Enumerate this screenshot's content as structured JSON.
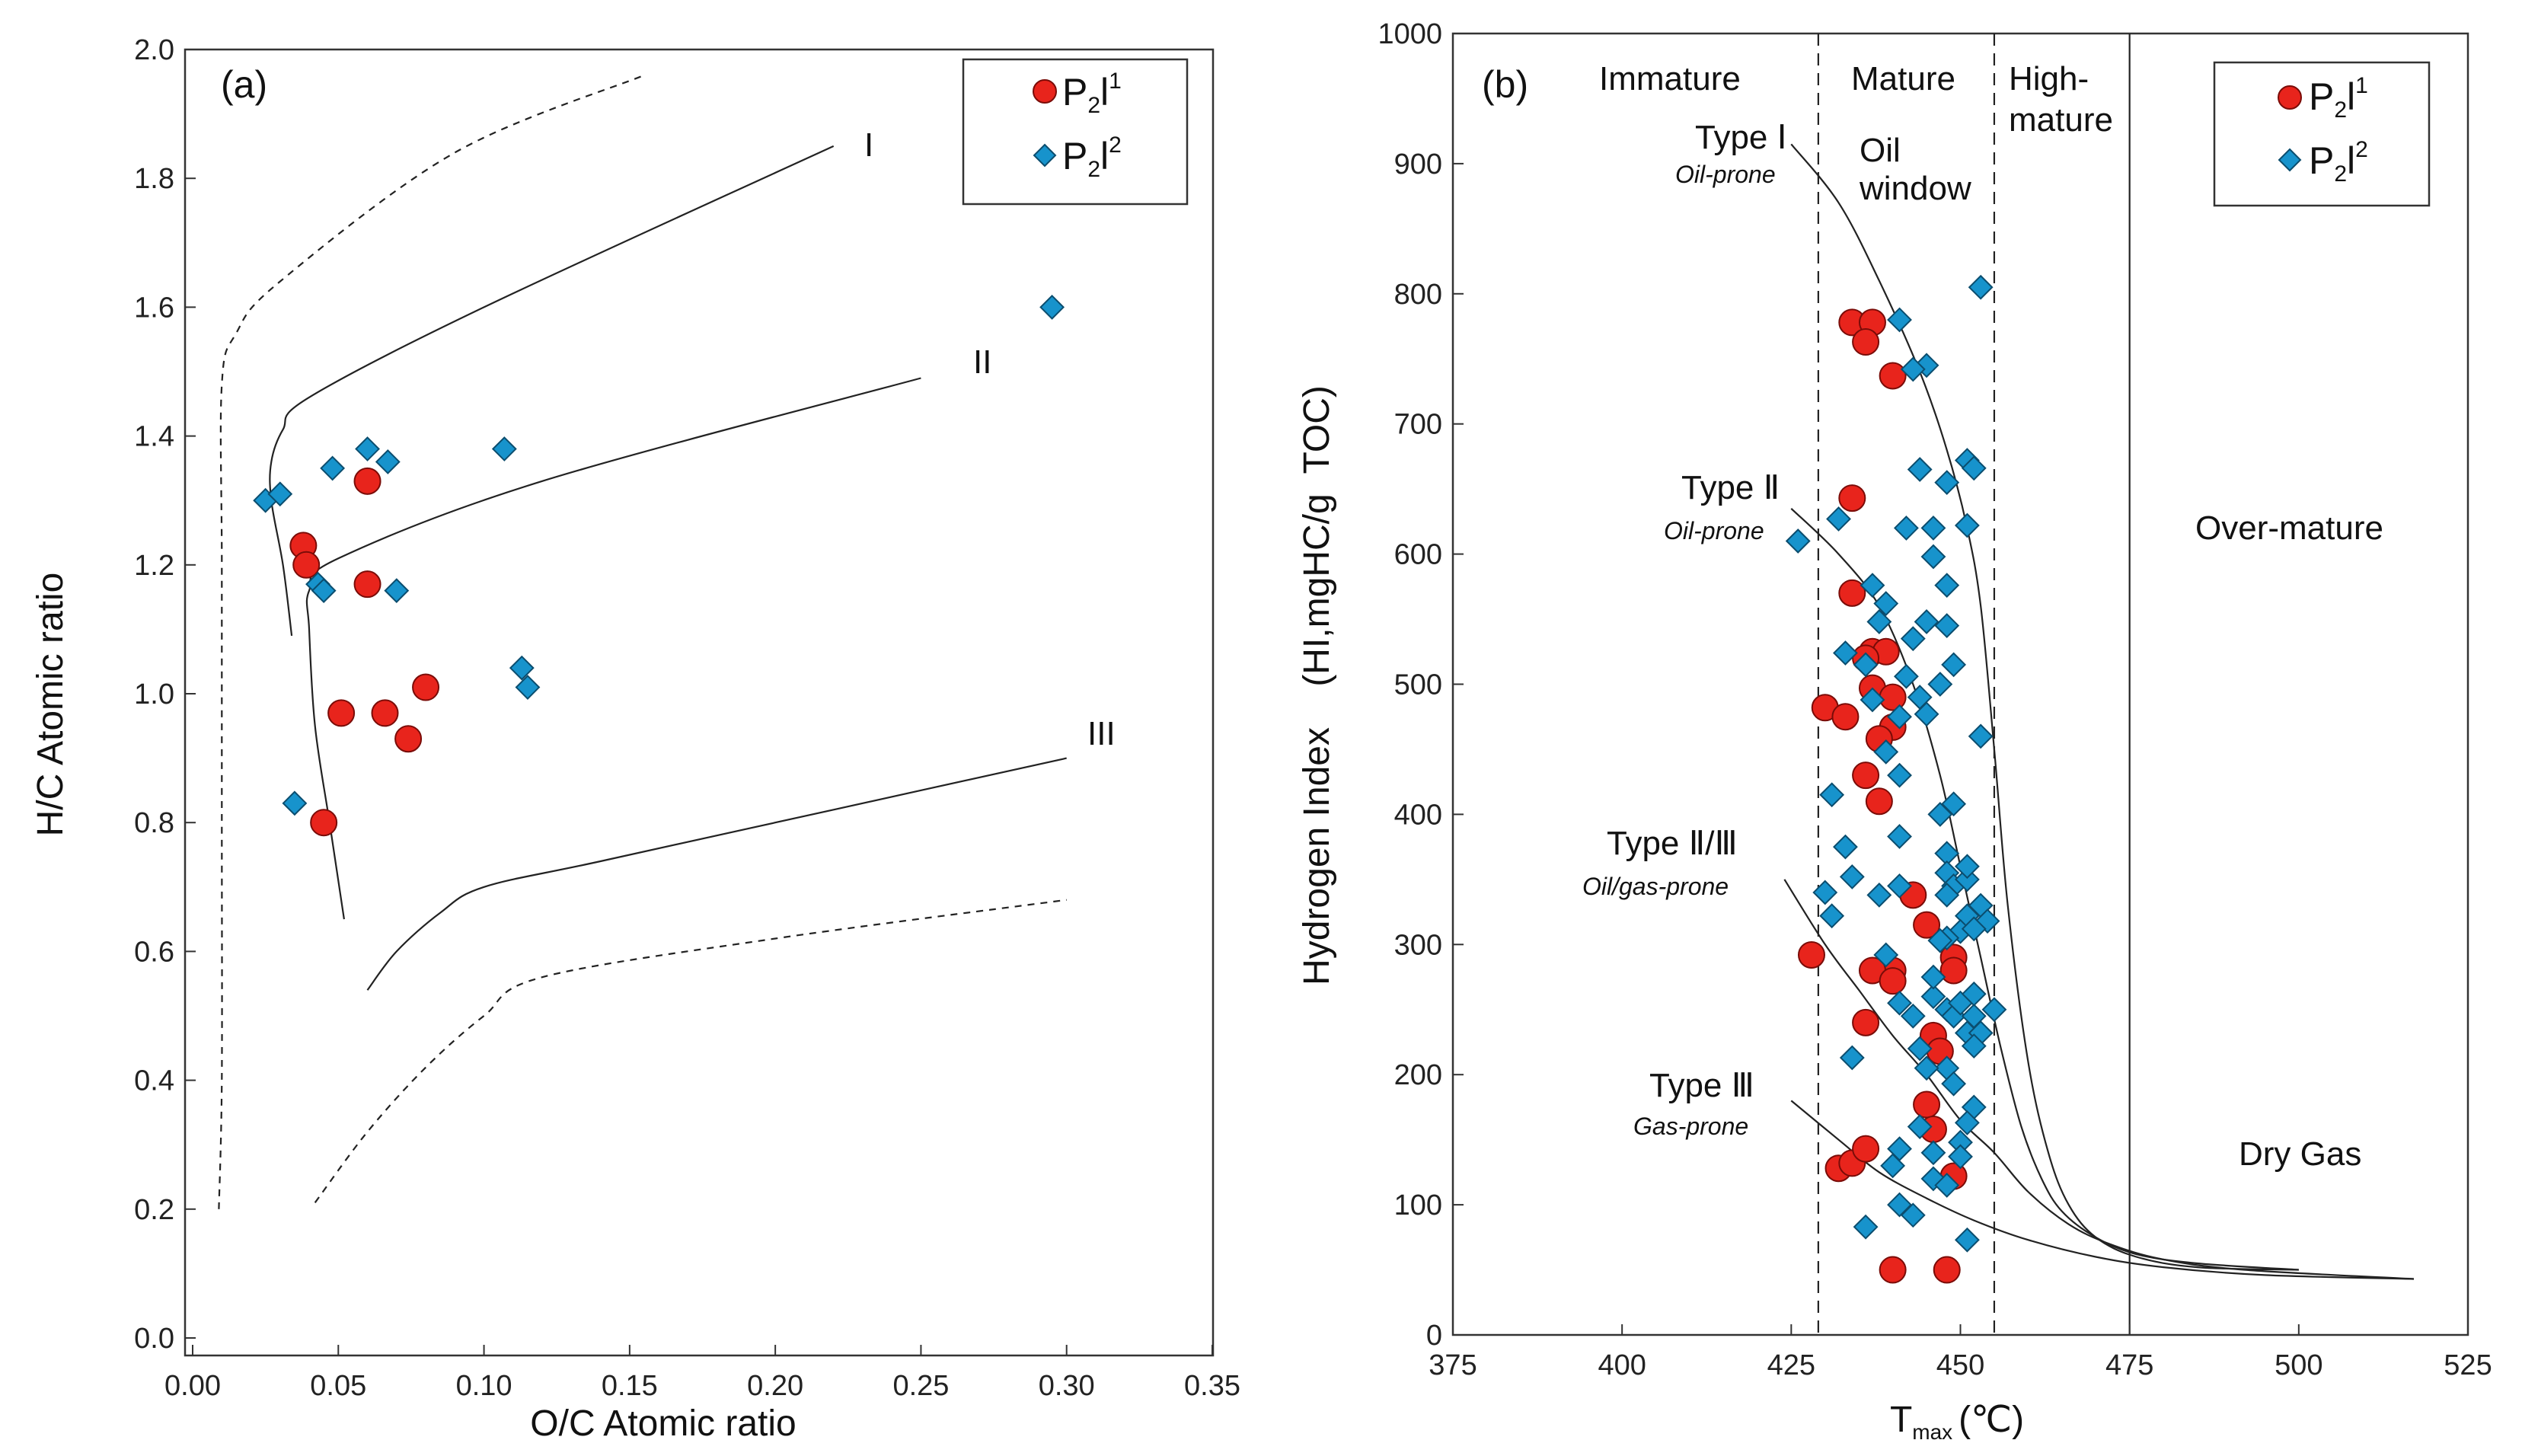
{
  "colors": {
    "p2l1": "#e8241c",
    "p2l2": "#1793cc",
    "line": "#222222",
    "frame": "#333333"
  },
  "legend": {
    "p2l1": {
      "base": "P",
      "sub": "2",
      "mid": "l",
      "sup": "1"
    },
    "p2l2": {
      "base": "P",
      "sub": "2",
      "mid": "l",
      "sup": "2"
    }
  },
  "chart_data": [
    {
      "type": "scatter",
      "panel_label": "(a)",
      "xlabel": "O/C Atomic ratio",
      "ylabel": "H/C Atomic ratio",
      "xlim": [
        0,
        0.35
      ],
      "ylim": [
        0,
        2.0
      ],
      "xticks": [
        "0.00",
        "0.05",
        "0.10",
        "0.15",
        "0.20",
        "0.25",
        "0.30",
        "0.35"
      ],
      "yticks": [
        "0.0",
        "0.2",
        "0.4",
        "0.6",
        "0.8",
        "1.0",
        "1.2",
        "1.4",
        "1.6",
        "1.8",
        "2.0"
      ],
      "curve_labels": [
        "I",
        "II",
        "III"
      ],
      "curves": [
        {
          "name": "I",
          "style": "solid",
          "points": [
            [
              0.034,
              1.09
            ],
            [
              0.031,
              1.2
            ],
            [
              0.027,
              1.3
            ],
            [
              0.027,
              1.36
            ],
            [
              0.031,
              1.41
            ],
            [
              0.04,
              1.46
            ],
            [
              0.1,
              1.6
            ],
            [
              0.22,
              1.85
            ]
          ]
        },
        {
          "name": "II",
          "style": "solid",
          "points": [
            [
              0.052,
              0.65
            ],
            [
              0.047,
              0.8
            ],
            [
              0.042,
              0.95
            ],
            [
              0.04,
              1.1
            ],
            [
              0.04,
              1.16
            ],
            [
              0.05,
              1.21
            ],
            [
              0.12,
              1.33
            ],
            [
              0.25,
              1.49
            ]
          ]
        },
        {
          "name": "III",
          "style": "solid",
          "points": [
            [
              0.06,
              0.54
            ],
            [
              0.07,
              0.6
            ],
            [
              0.085,
              0.66
            ],
            [
              0.1,
              0.7
            ],
            [
              0.14,
              0.74
            ],
            [
              0.22,
              0.82
            ],
            [
              0.3,
              0.9
            ]
          ]
        },
        {
          "name": "upper-limit",
          "style": "dashed",
          "points": [
            [
              0.009,
              0.2
            ],
            [
              0.01,
              0.4
            ],
            [
              0.01,
              0.8
            ],
            [
              0.01,
              1.2
            ],
            [
              0.01,
              1.48
            ],
            [
              0.015,
              1.56
            ],
            [
              0.03,
              1.64
            ],
            [
              0.09,
              1.84
            ],
            [
              0.155,
              1.96
            ]
          ]
        },
        {
          "name": "lower-limit",
          "style": "dashed",
          "points": [
            [
              0.042,
              0.21
            ],
            [
              0.06,
              0.32
            ],
            [
              0.08,
              0.42
            ],
            [
              0.1,
              0.5
            ],
            [
              0.12,
              0.56
            ],
            [
              0.2,
              0.62
            ],
            [
              0.3,
              0.68
            ]
          ]
        }
      ],
      "series": [
        {
          "name": "P2l1",
          "marker": "circle",
          "points": [
            [
              0.06,
              1.33
            ],
            [
              0.038,
              1.23
            ],
            [
              0.039,
              1.2
            ],
            [
              0.06,
              1.17
            ],
            [
              0.051,
              0.97
            ],
            [
              0.066,
              0.97
            ],
            [
              0.08,
              1.01
            ],
            [
              0.074,
              0.93
            ],
            [
              0.045,
              0.8
            ]
          ]
        },
        {
          "name": "P2l2",
          "marker": "diamond",
          "points": [
            [
              0.295,
              1.6
            ],
            [
              0.025,
              1.3
            ],
            [
              0.03,
              1.31
            ],
            [
              0.048,
              1.35
            ],
            [
              0.06,
              1.38
            ],
            [
              0.067,
              1.36
            ],
            [
              0.107,
              1.38
            ],
            [
              0.043,
              1.17
            ],
            [
              0.045,
              1.16
            ],
            [
              0.07,
              1.16
            ],
            [
              0.113,
              1.04
            ],
            [
              0.115,
              1.01
            ],
            [
              0.035,
              0.83
            ]
          ]
        }
      ]
    },
    {
      "type": "scatter",
      "panel_label": "(b)",
      "xlabel": "T",
      "xlabel_sub": "max",
      "xlabel_unit": "(℃)",
      "ylabel": "Hydrogen Index    (HI,mgHC/g  TOC)",
      "xlim": [
        375,
        525
      ],
      "ylim": [
        0,
        1000
      ],
      "xticks": [
        "375",
        "400",
        "425",
        "450",
        "475",
        "500",
        "525"
      ],
      "yticks": [
        "0",
        "100",
        "200",
        "300",
        "400",
        "500",
        "600",
        "700",
        "800",
        "900",
        "1000"
      ],
      "zones": {
        "immature": "Immature",
        "mature": "Mature",
        "high_mature_1": "High-",
        "high_mature_2": "mature",
        "oil_window_1": "Oil",
        "oil_window_2": "window",
        "over_mature": "Over-mature",
        "dry_gas": "Dry Gas"
      },
      "boundaries": [
        429,
        455,
        475
      ],
      "type_labels": [
        {
          "type": "Type Ⅰ",
          "kind": "Oil-prone"
        },
        {
          "type": "Type Ⅱ",
          "kind": "Oil-prone"
        },
        {
          "type": "Type Ⅱ/Ⅲ",
          "kind": "Oil/gas-prone"
        },
        {
          "type": "Type Ⅲ",
          "kind": "Gas-prone"
        }
      ],
      "curves": [
        {
          "name": "Type I",
          "points": [
            [
              425,
              915
            ],
            [
              432,
              870
            ],
            [
              438,
              810
            ],
            [
              444,
              740
            ],
            [
              448,
              680
            ],
            [
              451,
              620
            ],
            [
              453,
              560
            ],
            [
              455,
              450
            ],
            [
              457,
              330
            ],
            [
              460,
              210
            ],
            [
              463,
              140
            ],
            [
              466,
              100
            ],
            [
              470,
              75
            ],
            [
              476,
              60
            ],
            [
              485,
              52
            ],
            [
              500,
              50
            ]
          ]
        },
        {
          "name": "Type II",
          "points": [
            [
              425,
              635
            ],
            [
              432,
              600
            ],
            [
              438,
              560
            ],
            [
              443,
              500
            ],
            [
              447,
              430
            ],
            [
              450,
              360
            ],
            [
              453,
              290
            ],
            [
              456,
              220
            ],
            [
              459,
              160
            ],
            [
              462,
              120
            ],
            [
              465,
              95
            ],
            [
              470,
              75
            ],
            [
              476,
              62
            ],
            [
              485,
              55
            ],
            [
              500,
              50
            ]
          ]
        },
        {
          "name": "Type II/III",
          "points": [
            [
              424,
              350
            ],
            [
              430,
              300
            ],
            [
              435,
              265
            ],
            [
              440,
              230
            ],
            [
              445,
              200
            ],
            [
              450,
              165
            ],
            [
              455,
              140
            ],
            [
              460,
              110
            ],
            [
              466,
              85
            ],
            [
              472,
              70
            ],
            [
              480,
              58
            ],
            [
              492,
              50
            ],
            [
              517,
              43
            ]
          ]
        },
        {
          "name": "Type III",
          "points": [
            [
              425,
              180
            ],
            [
              432,
              150
            ],
            [
              438,
              125
            ],
            [
              445,
              105
            ],
            [
              452,
              88
            ],
            [
              460,
              73
            ],
            [
              470,
              60
            ],
            [
              480,
              52
            ],
            [
              495,
              46
            ],
            [
              517,
              43
            ]
          ]
        }
      ],
      "series": [
        {
          "name": "P2l1",
          "marker": "circle",
          "points": [
            [
              434,
              778
            ],
            [
              437,
              778
            ],
            [
              436,
              763
            ],
            [
              440,
              737
            ],
            [
              434,
              643
            ],
            [
              434,
              570
            ],
            [
              437,
              525
            ],
            [
              439,
              525
            ],
            [
              436,
              520
            ],
            [
              437,
              497
            ],
            [
              440,
              490
            ],
            [
              430,
              482
            ],
            [
              433,
              475
            ],
            [
              440,
              467
            ],
            [
              438,
              458
            ],
            [
              436,
              430
            ],
            [
              438,
              410
            ],
            [
              443,
              338
            ],
            [
              445,
              315
            ],
            [
              428,
              292
            ],
            [
              440,
              280
            ],
            [
              437,
              280
            ],
            [
              440,
              272
            ],
            [
              449,
              290
            ],
            [
              449,
              280
            ],
            [
              436,
              240
            ],
            [
              446,
              230
            ],
            [
              447,
              218
            ],
            [
              445,
              177
            ],
            [
              446,
              158
            ],
            [
              432,
              128
            ],
            [
              434,
              132
            ],
            [
              436,
              143
            ],
            [
              449,
              122
            ],
            [
              440,
              50
            ],
            [
              448,
              50
            ]
          ]
        },
        {
          "name": "P2l2",
          "marker": "diamond",
          "points": [
            [
              453,
              805
            ],
            [
              441,
              780
            ],
            [
              445,
              745
            ],
            [
              443,
              742
            ],
            [
              451,
              672
            ],
            [
              452,
              666
            ],
            [
              444,
              665
            ],
            [
              448,
              655
            ],
            [
              442,
              620
            ],
            [
              446,
              620
            ],
            [
              451,
              622
            ],
            [
              432,
              627
            ],
            [
              426,
              610
            ],
            [
              446,
              598
            ],
            [
              448,
              576
            ],
            [
              437,
              576
            ],
            [
              439,
              562
            ],
            [
              438,
              548
            ],
            [
              445,
              548
            ],
            [
              448,
              545
            ],
            [
              443,
              535
            ],
            [
              433,
              524
            ],
            [
              436,
              515
            ],
            [
              442,
              506
            ],
            [
              447,
              500
            ],
            [
              449,
              515
            ],
            [
              444,
              490
            ],
            [
              437,
              488
            ],
            [
              441,
              475
            ],
            [
              445,
              477
            ],
            [
              439,
              448
            ],
            [
              441,
              430
            ],
            [
              431,
              415
            ],
            [
              453,
              460
            ],
            [
              441,
              383
            ],
            [
              447,
              400
            ],
            [
              449,
              408
            ],
            [
              433,
              375
            ],
            [
              448,
              370
            ],
            [
              448,
              355
            ],
            [
              449,
              345
            ],
            [
              451,
              350
            ],
            [
              451,
              360
            ],
            [
              448,
              338
            ],
            [
              438,
              338
            ],
            [
              441,
              345
            ],
            [
              434,
              352
            ],
            [
              453,
              330
            ],
            [
              430,
              340
            ],
            [
              431,
              322
            ],
            [
              451,
              322
            ],
            [
              454,
              318
            ],
            [
              450,
              310
            ],
            [
              452,
              312
            ],
            [
              448,
              305
            ],
            [
              439,
              292
            ],
            [
              447,
              303
            ],
            [
              434,
              213
            ],
            [
              441,
              255
            ],
            [
              443,
              245
            ],
            [
              446,
              260
            ],
            [
              446,
              275
            ],
            [
              448,
              250
            ],
            [
              449,
              245
            ],
            [
              450,
              255
            ],
            [
              452,
              245
            ],
            [
              452,
              262
            ],
            [
              451,
              232
            ],
            [
              455,
              250
            ],
            [
              453,
              232
            ],
            [
              448,
              205
            ],
            [
              452,
              222
            ],
            [
              444,
              220
            ],
            [
              445,
              205
            ],
            [
              449,
              193
            ],
            [
              452,
              175
            ],
            [
              451,
              163
            ],
            [
              444,
              160
            ],
            [
              446,
              140
            ],
            [
              450,
              148
            ],
            [
              450,
              137
            ],
            [
              441,
              143
            ],
            [
              440,
              130
            ],
            [
              441,
              100
            ],
            [
              446,
              120
            ],
            [
              448,
              115
            ],
            [
              443,
              92
            ],
            [
              436,
              83
            ],
            [
              451,
              73
            ]
          ]
        }
      ]
    }
  ]
}
